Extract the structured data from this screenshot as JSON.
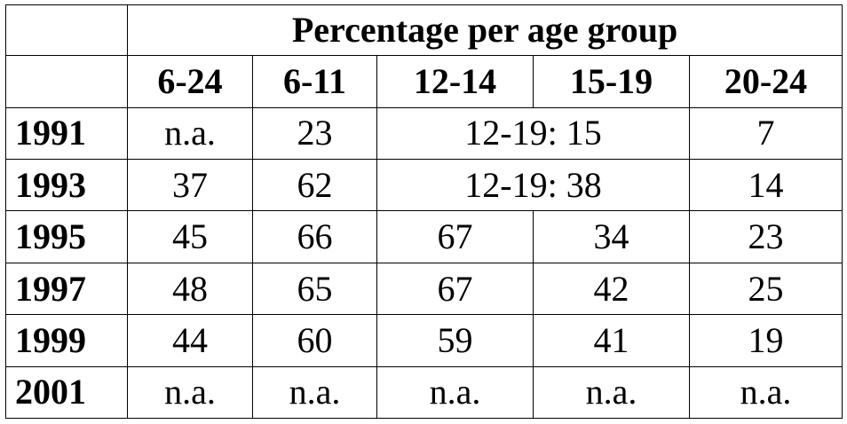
{
  "table": {
    "group_header": "Percentage per age group",
    "columns": [
      "6-24",
      "6-11",
      "12-14",
      "15-19",
      "20-24"
    ],
    "rows": [
      {
        "year": "1991",
        "c6_24": "n.a.",
        "c6_11": "23",
        "merged_12_19": "12-19: 15",
        "c20_24": "7"
      },
      {
        "year": "1993",
        "c6_24": "37",
        "c6_11": "62",
        "merged_12_19": "12-19: 38",
        "c20_24": "14"
      },
      {
        "year": "1995",
        "c6_24": "45",
        "c6_11": "66",
        "c12_14": "67",
        "c15_19": "34",
        "c20_24": "23"
      },
      {
        "year": "1997",
        "c6_24": "48",
        "c6_11": "65",
        "c12_14": "67",
        "c15_19": "42",
        "c20_24": "25"
      },
      {
        "year": "1999",
        "c6_24": "44",
        "c6_11": "60",
        "c12_14": "59",
        "c15_19": "41",
        "c20_24": "19"
      },
      {
        "year": "2001",
        "c6_24": "n.a.",
        "c6_11": "n.a.",
        "c12_14": "n.a.",
        "c15_19": "n.a.",
        "c20_24": "n.a."
      }
    ]
  }
}
